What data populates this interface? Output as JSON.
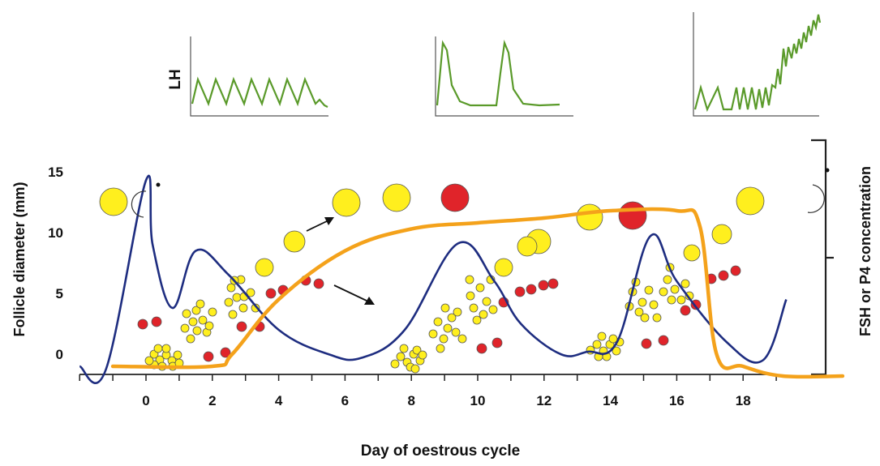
{
  "chart_data": {
    "type": "line",
    "xlabel": "Day of oestrous cycle",
    "ylabel": "Follicle diameter (mm)",
    "y2label": "FSH or P4  concentration",
    "x_ticks": [
      "0",
      "2",
      "4",
      "6",
      "8",
      "10",
      "12",
      "14",
      "16",
      "18"
    ],
    "y_ticks": [
      "0",
      "5",
      "10",
      "15"
    ],
    "lh_label": "LH",
    "colors": {
      "follicle_curve": "#1e2d80",
      "hormone_curve": "#f4a21b",
      "lh_trace": "#5a9a2a",
      "yellow_follicle": "#ffef1e",
      "red_follicle": "#e0242a"
    },
    "series": [
      {
        "values_x": [
          -2,
          -1.2,
          0,
          0.2,
          0.8,
          1.5,
          2.5,
          4,
          5.5,
          6.5,
          7.8,
          9.4,
          10.5,
          11.3,
          12.5,
          13.3,
          14.2,
          15.2,
          16,
          17.5,
          18.6,
          19.3
        ],
        "values_y": [
          -1,
          -1.2,
          14.3,
          9,
          3.8,
          8.5,
          6.5,
          2,
          0,
          -0.3,
          2,
          9.1,
          6,
          2.5,
          0,
          0.2,
          1,
          9.7,
          6,
          1,
          -0.5,
          4.5
        ]
      },
      {
        "values_x": [
          -1,
          2,
          2.6,
          4,
          6,
          8,
          10,
          12,
          14,
          16,
          16.7,
          17.2,
          18,
          19.2,
          21
        ],
        "values_y": [
          -1,
          -1,
          0,
          4.5,
          8.5,
          10.3,
          10.8,
          11.2,
          11.8,
          11.8,
          10.5,
          0,
          -1,
          -1.8,
          -1.8
        ]
      }
    ],
    "lh_panels": [
      {
        "pattern": "frequent-low-pulses"
      },
      {
        "pattern": "two-isolated-pulses"
      },
      {
        "pattern": "accelerating-pulses-to-surge"
      }
    ]
  }
}
